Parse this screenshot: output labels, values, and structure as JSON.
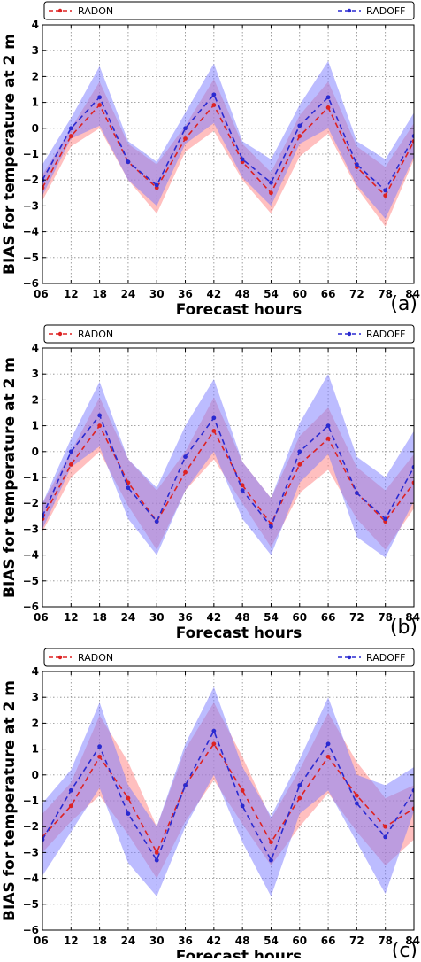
{
  "chart_data": [
    {
      "type": "line",
      "panel_label": "(a)",
      "x": [
        6,
        12,
        18,
        24,
        30,
        36,
        42,
        48,
        54,
        60,
        66,
        72,
        78,
        84
      ],
      "xticklabels": [
        "06",
        "12",
        "18",
        "24",
        "30",
        "36",
        "42",
        "48",
        "54",
        "60",
        "66",
        "72",
        "78",
        "84"
      ],
      "yticks": [
        4,
        3,
        2,
        1,
        0,
        -1,
        -2,
        -3,
        -4,
        -5,
        -6
      ],
      "yticklabels": [
        "4",
        "3",
        "2",
        "1",
        "0",
        "−1",
        "−2",
        "−3",
        "−4",
        "−5",
        "−6"
      ],
      "xlabel": "Forecast hours",
      "ylabel": "BIAS for temperature at 2 m",
      "xlim": [
        6,
        84
      ],
      "ylim": [
        -6,
        4
      ],
      "grid": true,
      "legend": "top",
      "series": [
        {
          "name": "RADON",
          "color": "#dd2222",
          "band_color": "#ff8080",
          "values": [
            -2.3,
            -0.3,
            0.9,
            -1.3,
            -2.3,
            -0.4,
            0.9,
            -1.3,
            -2.5,
            -0.3,
            0.8,
            -1.5,
            -2.6,
            -0.5
          ],
          "lower": [
            -2.8,
            -0.7,
            0.0,
            -2.0,
            -3.3,
            -0.9,
            -0.1,
            -2.0,
            -3.3,
            -1.1,
            -0.2,
            -2.3,
            -3.8,
            -1.2
          ],
          "upper": [
            -1.8,
            0.0,
            1.8,
            -0.6,
            -1.4,
            0.1,
            1.9,
            -0.6,
            -1.7,
            0.5,
            1.8,
            -0.7,
            -1.5,
            0.2
          ]
        },
        {
          "name": "RADOFF",
          "color": "#2a2ad0",
          "band_color": "#7a7aff",
          "values": [
            -2.0,
            0.0,
            1.2,
            -1.3,
            -2.2,
            0.0,
            1.3,
            -1.2,
            -2.1,
            0.1,
            1.2,
            -1.4,
            -2.4,
            -0.3
          ],
          "lower": [
            -2.6,
            -0.4,
            0.1,
            -2.0,
            -3.0,
            -0.6,
            0.2,
            -1.9,
            -3.0,
            -0.6,
            0.0,
            -2.2,
            -3.5,
            -1.1
          ],
          "upper": [
            -1.4,
            0.4,
            2.4,
            -0.5,
            -1.3,
            0.6,
            2.5,
            -0.5,
            -1.2,
            0.9,
            2.6,
            -0.5,
            -1.2,
            0.6
          ]
        }
      ]
    },
    {
      "type": "line",
      "panel_label": "(b)",
      "x": [
        6,
        12,
        18,
        24,
        30,
        36,
        42,
        48,
        54,
        60,
        66,
        72,
        78,
        84
      ],
      "xticklabels": [
        "06",
        "12",
        "18",
        "24",
        "30",
        "36",
        "42",
        "48",
        "54",
        "60",
        "66",
        "72",
        "78",
        "84"
      ],
      "yticks": [
        4,
        3,
        2,
        1,
        0,
        -1,
        -2,
        -3,
        -4,
        -5,
        -6
      ],
      "yticklabels": [
        "4",
        "3",
        "2",
        "1",
        "0",
        "−1",
        "−2",
        "−3",
        "−4",
        "−5",
        "−6"
      ],
      "xlabel": "Forecast hours",
      "ylabel": "BIAS for temperature at 2 m",
      "xlim": [
        6,
        84
      ],
      "ylim": [
        -6,
        4
      ],
      "grid": true,
      "legend": "top",
      "series": [
        {
          "name": "RADON",
          "color": "#dd2222",
          "band_color": "#ff8080",
          "values": [
            -2.6,
            -0.5,
            1.0,
            -1.2,
            -2.7,
            -0.8,
            0.8,
            -1.3,
            -2.8,
            -0.5,
            0.5,
            -1.6,
            -2.7,
            -1.2
          ],
          "lower": [
            -3.1,
            -1.0,
            0.0,
            -2.1,
            -3.8,
            -1.5,
            -0.3,
            -2.0,
            -3.7,
            -1.6,
            -0.7,
            -2.6,
            -3.8,
            -2.2
          ],
          "upper": [
            -2.0,
            0.0,
            2.1,
            -0.3,
            -1.5,
            0.0,
            2.1,
            -0.4,
            -1.8,
            0.6,
            1.7,
            -0.6,
            -1.5,
            -0.1
          ]
        },
        {
          "name": "RADOFF",
          "color": "#2a2ad0",
          "band_color": "#7a7aff",
          "values": [
            -2.5,
            0.0,
            1.4,
            -1.4,
            -2.7,
            -0.2,
            1.3,
            -1.5,
            -2.9,
            0.0,
            1.0,
            -1.6,
            -2.6,
            -0.6
          ],
          "lower": [
            -3.0,
            -0.6,
            0.2,
            -2.6,
            -4.0,
            -1.5,
            0.0,
            -2.6,
            -4.0,
            -1.2,
            -0.1,
            -3.3,
            -4.1,
            -1.9
          ],
          "upper": [
            -2.0,
            0.5,
            2.7,
            -0.3,
            -1.4,
            1.0,
            2.8,
            -0.4,
            -1.8,
            1.1,
            3.0,
            -0.2,
            -1.0,
            0.8
          ]
        }
      ]
    },
    {
      "type": "line",
      "panel_label": "(c)",
      "x": [
        6,
        12,
        18,
        24,
        30,
        36,
        42,
        48,
        54,
        60,
        66,
        72,
        78,
        84
      ],
      "xticklabels": [
        "06",
        "12",
        "18",
        "24",
        "30",
        "36",
        "42",
        "48",
        "54",
        "60",
        "66",
        "72",
        "78",
        "84"
      ],
      "yticks": [
        4,
        3,
        2,
        1,
        0,
        -1,
        -2,
        -3,
        -4,
        -5,
        -6
      ],
      "yticklabels": [
        "4",
        "3",
        "2",
        "1",
        "0",
        "−1",
        "−2",
        "−3",
        "−4",
        "−5",
        "−6"
      ],
      "xlabel": "Forecast hours",
      "ylabel": "BIAS for temperature at 2 m",
      "xlim": [
        6,
        84
      ],
      "ylim": [
        -6,
        4
      ],
      "grid": true,
      "legend": "top",
      "series": [
        {
          "name": "RADON",
          "color": "#dd2222",
          "band_color": "#ff8080",
          "values": [
            -2.4,
            -1.2,
            0.7,
            -0.9,
            -3.0,
            -0.4,
            1.2,
            -0.6,
            -2.6,
            -0.9,
            0.7,
            -0.8,
            -2.0,
            -1.3
          ],
          "lower": [
            -3.0,
            -1.8,
            -0.8,
            -2.3,
            -4.0,
            -1.8,
            -0.2,
            -1.9,
            -3.5,
            -2.0,
            -0.7,
            -2.2,
            -3.5,
            -2.5
          ],
          "upper": [
            -1.5,
            -0.3,
            2.3,
            0.5,
            -2.0,
            1.0,
            2.8,
            0.7,
            -1.7,
            0.2,
            2.4,
            0.5,
            -0.9,
            -0.4
          ]
        },
        {
          "name": "RADOFF",
          "color": "#2a2ad0",
          "band_color": "#7a7aff",
          "values": [
            -2.5,
            -0.6,
            1.1,
            -1.5,
            -3.3,
            -0.4,
            1.7,
            -1.2,
            -3.3,
            -0.4,
            1.2,
            -1.1,
            -2.4,
            -0.6
          ],
          "lower": [
            -3.9,
            -2.2,
            -0.5,
            -3.4,
            -4.7,
            -2.0,
            0.0,
            -2.6,
            -4.7,
            -1.5,
            -0.6,
            -2.6,
            -4.6,
            -1.4
          ],
          "upper": [
            -1.1,
            0.2,
            2.8,
            -0.4,
            -2.0,
            1.2,
            3.4,
            0.3,
            -1.6,
            0.6,
            3.0,
            0.0,
            -0.4,
            0.3
          ]
        }
      ]
    }
  ]
}
